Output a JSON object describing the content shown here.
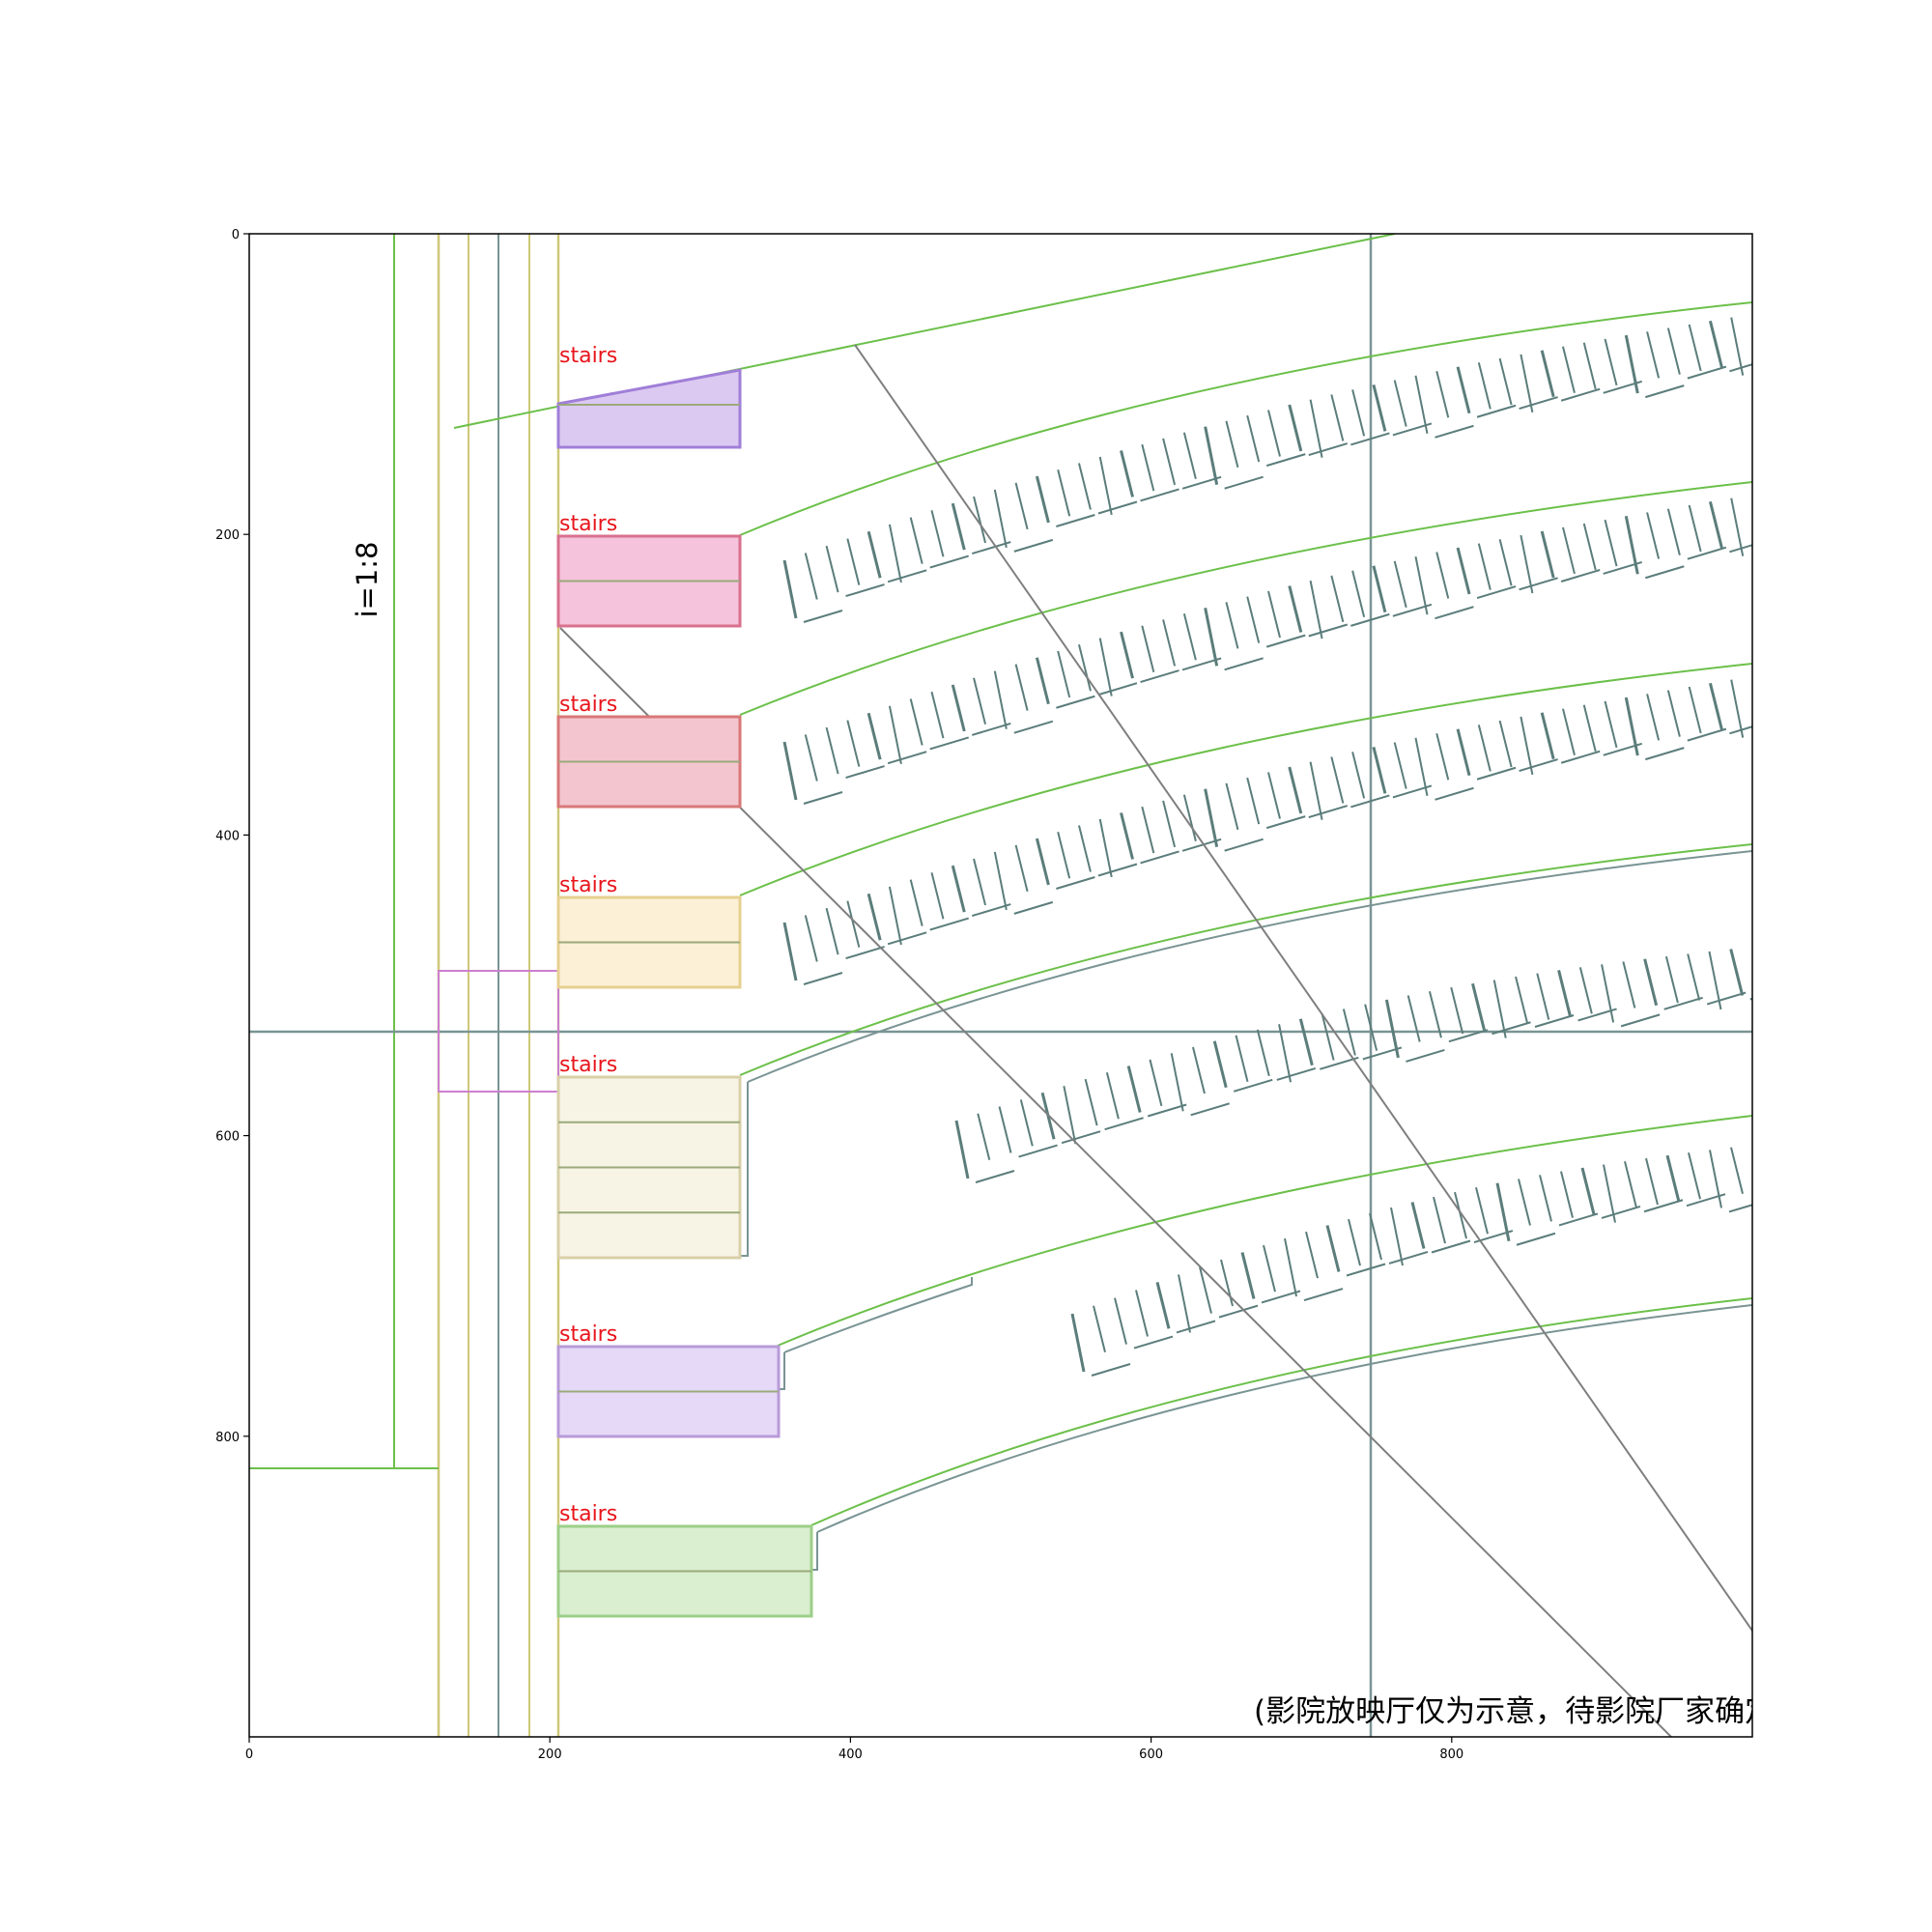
{
  "chart_data": {
    "type": "diagram",
    "xlim": [
      0,
      1000
    ],
    "ylim": [
      1000,
      0
    ],
    "x_ticks": [
      {
        "value": 0,
        "label": "0"
      },
      {
        "value": 200,
        "label": "200"
      },
      {
        "value": 400,
        "label": "400"
      },
      {
        "value": 600,
        "label": "600"
      },
      {
        "value": 800,
        "label": "800"
      }
    ],
    "y_ticks": [
      {
        "value": 0,
        "label": "0"
      },
      {
        "value": 200,
        "label": "200"
      },
      {
        "value": 400,
        "label": "400"
      },
      {
        "value": 600,
        "label": "600"
      },
      {
        "value": 800,
        "label": "800"
      }
    ]
  },
  "labels": {
    "slope": "i=1:8",
    "note": "(影院放映厅仅为示意，待影院厂家确定",
    "stairs": [
      {
        "text": "stairs"
      },
      {
        "text": "stairs"
      },
      {
        "text": "stairs"
      },
      {
        "text": "stairs"
      },
      {
        "text": "stairs"
      },
      {
        "text": "stairs"
      },
      {
        "text": "stairs"
      }
    ]
  },
  "stair_blocks": [
    {
      "fill": "#dcc9f2",
      "stroke": "#a07fd8",
      "treads": 1
    },
    {
      "fill": "#f6c3dc",
      "stroke": "#d8708e",
      "treads": 1
    },
    {
      "fill": "#f3c6cf",
      "stroke": "#d87878",
      "treads": 1
    },
    {
      "fill": "#fcf0d6",
      "stroke": "#e6d090",
      "treads": 1
    },
    {
      "fill": "#f7f4e6",
      "stroke": "#d8d0a8",
      "treads": 3
    },
    {
      "fill": "#e5d9f7",
      "stroke": "#b89ad8",
      "treads": 1
    },
    {
      "fill": "#d9efd0",
      "stroke": "#9ccf88",
      "treads": 1
    }
  ],
  "colors": {
    "green_line": "#6cc04a",
    "gray_line": "#7a8e8e",
    "yellow_line": "#cfc878",
    "seat_mark": "#5b7d7b",
    "diagonal": "#7f7f7f",
    "magenta_box": "#cc7fd0"
  }
}
